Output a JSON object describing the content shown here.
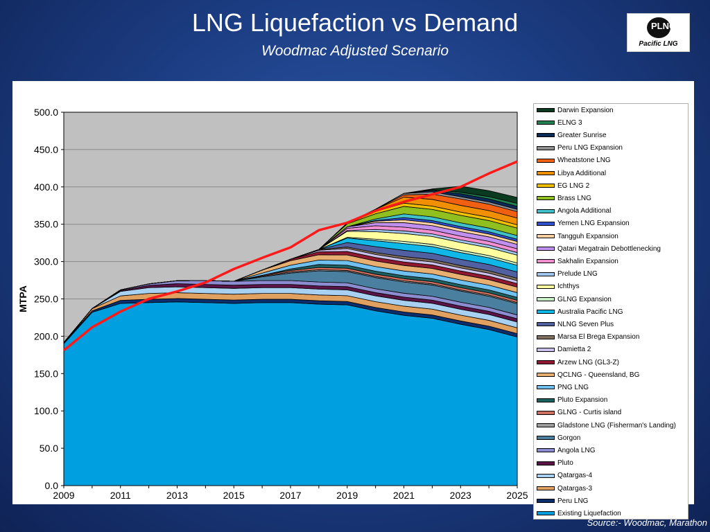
{
  "header": {
    "title": "LNG Liquefaction vs Demand",
    "subtitle": "Woodmac Adjusted Scenario"
  },
  "logo": {
    "mark": "PLNG",
    "text": "Pacific LNG"
  },
  "source": "Source:- Woodmac, Marathon",
  "chart_data": {
    "type": "area",
    "stacked": true,
    "title": "",
    "xlabel": "",
    "ylabel": "MTPA",
    "x": [
      2009,
      2010,
      2011,
      2012,
      2013,
      2014,
      2015,
      2016,
      2017,
      2018,
      2019,
      2020,
      2021,
      2022,
      2023,
      2024,
      2025
    ],
    "x_ticks": [
      "2009",
      "2011",
      "2013",
      "2015",
      "2017",
      "2019",
      "2021",
      "2023",
      "2025"
    ],
    "ylim": [
      0,
      500
    ],
    "y_ticks": [
      "0.0",
      "50.0",
      "100.0",
      "150.0",
      "200.0",
      "250.0",
      "300.0",
      "350.0",
      "400.0",
      "450.0",
      "500.0"
    ],
    "grid": true,
    "plot_background": "#c0c0c0",
    "legend_position": "right",
    "series": [
      {
        "name": "Existing Liquefaction",
        "color": "#00a0e0",
        "values": [
          190,
          232,
          244,
          245,
          246,
          245,
          244,
          245,
          245,
          243,
          242,
          234,
          228,
          224,
          216,
          209,
          199
        ]
      },
      {
        "name": "Peru LNG",
        "color": "#0a2e6e",
        "values": [
          1.5,
          2,
          4,
          4.5,
          4.5,
          4.5,
          4.5,
          4.5,
          4.5,
          4.5,
          4.5,
          4.5,
          4.5,
          4.5,
          4.5,
          4.5,
          4.5
        ]
      },
      {
        "name": "Qatargas-3",
        "color": "#e0a060",
        "values": [
          0,
          3,
          6,
          7.8,
          7.8,
          7.8,
          7.8,
          7.8,
          7.8,
          7.8,
          7.8,
          7.8,
          7.8,
          7.8,
          7.8,
          7.8,
          7.8
        ]
      },
      {
        "name": "Qatargas-4",
        "color": "#a8d0f0",
        "values": [
          0,
          0,
          6,
          7.8,
          7.8,
          7.8,
          7.8,
          7.8,
          7.8,
          7.8,
          7.8,
          7.8,
          7.8,
          7.8,
          7.8,
          7.8,
          7.8
        ]
      },
      {
        "name": "Pluto",
        "color": "#5a1448",
        "values": [
          0,
          0,
          1,
          3,
          4.3,
          4.3,
          4.3,
          4.3,
          4.3,
          4.3,
          4.3,
          4.3,
          4.3,
          4.3,
          4.3,
          4.3,
          4.3
        ]
      },
      {
        "name": "Angola LNG",
        "color": "#8c8cd0",
        "values": [
          0,
          0,
          1,
          2,
          4,
          5.2,
          5.2,
          5.2,
          5.2,
          5.2,
          5.2,
          5.2,
          5.2,
          5.2,
          5.2,
          5.2,
          5.2
        ]
      },
      {
        "name": "Gorgon",
        "color": "#4a7fa0",
        "values": [
          0,
          0,
          0,
          0,
          0,
          0,
          0,
          5,
          10,
          15,
          15,
          15,
          15,
          15,
          15,
          15,
          15
        ]
      },
      {
        "name": "Gladstone LNG (Fisherman's Landing)",
        "color": "#a0a0a0",
        "values": [
          0,
          0,
          0,
          0,
          0,
          0,
          0,
          1,
          1.5,
          1.5,
          1.5,
          1.5,
          1.5,
          1.5,
          1.5,
          1.5,
          1.5
        ]
      },
      {
        "name": "GLNG - Curtis island",
        "color": "#d07060",
        "values": [
          0,
          0,
          0,
          0,
          0,
          0,
          0,
          1,
          2,
          3,
          3,
          3,
          3,
          3,
          3,
          3,
          3
        ]
      },
      {
        "name": "Pluto Expansion",
        "color": "#1c6060",
        "values": [
          0,
          0,
          0,
          0,
          0,
          0,
          0,
          0,
          2,
          4,
          4,
          4,
          4,
          4,
          4,
          4,
          4
        ]
      },
      {
        "name": "PNG LNG",
        "color": "#70c0f0",
        "values": [
          0,
          0,
          0,
          0,
          0,
          0,
          0,
          3,
          5,
          6,
          6.3,
          6.3,
          6.3,
          6.3,
          6.3,
          6.3,
          6.3
        ]
      },
      {
        "name": "QCLNG - Queensland, BG",
        "color": "#e8b070",
        "values": [
          0,
          0,
          0,
          0,
          0,
          0,
          0,
          4,
          6,
          7,
          7.4,
          7.4,
          7.4,
          7.4,
          7.4,
          7.4,
          7.4
        ]
      },
      {
        "name": "Arzew LNG (GL3-Z)",
        "color": "#901830",
        "values": [
          0,
          0,
          0,
          0,
          0,
          0,
          0,
          0,
          2,
          4,
          4.7,
          4.7,
          4.7,
          4.7,
          4.7,
          4.7,
          4.7
        ]
      },
      {
        "name": "Damietta 2",
        "color": "#c8c0e8",
        "values": [
          0,
          0,
          0,
          0,
          0,
          0,
          0,
          0,
          0,
          2,
          4,
          4,
          4,
          4,
          4,
          4,
          4
        ]
      },
      {
        "name": "Marsa El Brega Expansion",
        "color": "#807060",
        "values": [
          0,
          0,
          0,
          0,
          0,
          0,
          0,
          0,
          0,
          1,
          2,
          2.5,
          3.2,
          3.2,
          3.2,
          3.2,
          3.2
        ]
      },
      {
        "name": "NLNG Seven Plus",
        "color": "#5060a0",
        "values": [
          0,
          0,
          0,
          0,
          0,
          0,
          0,
          0,
          0,
          0,
          6,
          8,
          8.4,
          8.4,
          8.4,
          8.4,
          8.4
        ]
      },
      {
        "name": "Australia Pacific LNG",
        "color": "#10b8e8",
        "values": [
          0,
          0,
          0,
          0,
          0,
          0,
          0,
          0,
          0,
          0,
          6,
          8,
          9,
          9,
          9,
          9,
          9
        ]
      },
      {
        "name": "GLNG Expansion",
        "color": "#c8f0c8",
        "values": [
          0,
          0,
          0,
          0,
          0,
          0,
          0,
          0,
          0,
          0,
          1,
          2,
          3,
          3,
          3,
          3,
          3
        ]
      },
      {
        "name": "Ichthys",
        "color": "#ffffa0",
        "values": [
          0,
          0,
          0,
          0,
          0,
          0,
          0,
          0,
          0,
          0,
          8,
          10,
          10.5,
          10.5,
          10.5,
          10.5,
          10.5
        ]
      },
      {
        "name": "Prelude LNG",
        "color": "#a0c8f0",
        "values": [
          0,
          0,
          0,
          0,
          0,
          0,
          0,
          0,
          0,
          0,
          1,
          3,
          3.5,
          3.5,
          3.5,
          3.5,
          3.5
        ]
      },
      {
        "name": "Sakhalin Expansion",
        "color": "#f090d0",
        "values": [
          0,
          0,
          0,
          0,
          0,
          0,
          0,
          0,
          0,
          0,
          3,
          5,
          5,
          5,
          5,
          5,
          5
        ]
      },
      {
        "name": "Qatari Megatrain Debottlenecking",
        "color": "#c090f0",
        "values": [
          0,
          0,
          0,
          0,
          0,
          0,
          0,
          0,
          0,
          0,
          2,
          4,
          6,
          6,
          6,
          6,
          6
        ]
      },
      {
        "name": "Tangguh Expansion",
        "color": "#ffd0a0",
        "values": [
          0,
          0,
          0,
          0,
          0,
          0,
          0,
          0,
          0,
          0,
          0,
          2,
          3.8,
          3.8,
          3.8,
          3.8,
          3.8
        ]
      },
      {
        "name": "Yemen LNG Expansion",
        "color": "#3050d0",
        "values": [
          0,
          0,
          0,
          0,
          0,
          0,
          0,
          0,
          0,
          0,
          0,
          1,
          3,
          3,
          3,
          3,
          3
        ]
      },
      {
        "name": "Angola Additional",
        "color": "#40c0c8",
        "values": [
          0,
          0,
          0,
          0,
          0,
          0,
          0,
          0,
          0,
          0,
          0,
          2,
          5,
          5,
          5,
          5,
          5
        ]
      },
      {
        "name": "Brass LNG",
        "color": "#90c020",
        "values": [
          0,
          0,
          0,
          0,
          0,
          0,
          0,
          0,
          0,
          0,
          4,
          7,
          10,
          10,
          10,
          10,
          10
        ]
      },
      {
        "name": "EG LNG 2",
        "color": "#f0c000",
        "values": [
          0,
          0,
          0,
          0,
          0,
          0,
          0,
          0,
          0,
          0,
          1,
          3,
          4.4,
          4.4,
          4.4,
          4.4,
          4.4
        ]
      },
      {
        "name": "Libya Additional",
        "color": "#f09000",
        "values": [
          0,
          0,
          0,
          0,
          0,
          0,
          0,
          0,
          0,
          0,
          0,
          3,
          8,
          9,
          9,
          9,
          9
        ]
      },
      {
        "name": "Wheatstone LNG",
        "color": "#f06010",
        "values": [
          0,
          0,
          0,
          0,
          0,
          0,
          0,
          0,
          0,
          0,
          0,
          0,
          3,
          7,
          8.6,
          8.6,
          8.6
        ]
      },
      {
        "name": "Peru LNG Expansion",
        "color": "#909090",
        "values": [
          0,
          0,
          0,
          0,
          0,
          0,
          0,
          0,
          0,
          0,
          0,
          0,
          2,
          3,
          3,
          3,
          3
        ]
      },
      {
        "name": "Greater Sunrise",
        "color": "#0a2a5a",
        "values": [
          0,
          0,
          0,
          0,
          0,
          0,
          0,
          0,
          0,
          0,
          0,
          0,
          0,
          2,
          4,
          4,
          4
        ]
      },
      {
        "name": "ELNG 3",
        "color": "#208050",
        "values": [
          0,
          0,
          0,
          0,
          0,
          0,
          0,
          0,
          0,
          0,
          0,
          0,
          0,
          1,
          2,
          3,
          4
        ]
      },
      {
        "name": "Darwin Expansion",
        "color": "#0a3a20",
        "values": [
          0,
          0,
          0,
          0,
          0,
          0,
          0,
          0,
          0,
          0,
          0,
          0,
          0,
          1,
          8,
          8,
          8
        ]
      }
    ],
    "demand_line": {
      "color": "#ff1a1a",
      "values": [
        181,
        212,
        233,
        250,
        260,
        272,
        290,
        305,
        319,
        342,
        352,
        368,
        380,
        390,
        400,
        418,
        434
      ]
    }
  }
}
